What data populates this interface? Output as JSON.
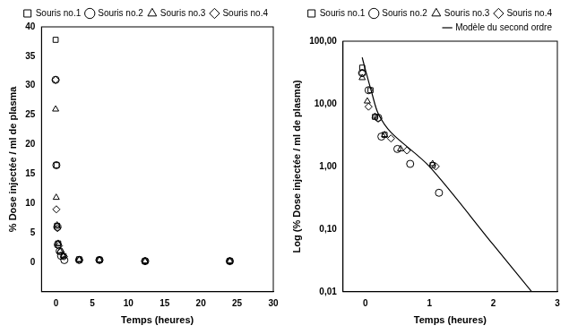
{
  "chart_data": [
    {
      "type": "scatter",
      "x_label": "Temps (heures)",
      "y_label": "% Dose injectée / ml de plasma",
      "xlim": [
        -2,
        30
      ],
      "xticks": [
        0,
        5,
        10,
        15,
        20,
        25,
        30
      ],
      "ylim": [
        -5,
        40
      ],
      "yticks": [
        0,
        5,
        10,
        15,
        20,
        25,
        30,
        35,
        40
      ],
      "grid": false,
      "legend": "upper right",
      "series": [
        {
          "name": "Souris no.1",
          "marker": "square",
          "color": "#000000",
          "x": [
            -0.05,
            0.08,
            0.15,
            0.3,
            1.05,
            3.2,
            6,
            12.3,
            24
          ],
          "values": [
            37.8,
            16.5,
            6.2,
            3.2,
            1.05,
            0.5,
            0.4,
            0.2,
            0.2
          ]
        },
        {
          "name": "Souris no.2",
          "marker": "circle",
          "color": "#000000",
          "x": [
            -0.05,
            0.05,
            0.2,
            0.25,
            0.5,
            0.7,
            1.15,
            3.2,
            6,
            12.3,
            24
          ],
          "values": [
            31,
            16.5,
            6,
            3,
            1.9,
            1.1,
            0.38,
            0.4,
            0.4,
            0.2,
            0.2
          ]
        },
        {
          "name": "Souris no.3",
          "marker": "triangle",
          "color": "#000000",
          "x": [
            -0.05,
            0.03,
            0.15,
            0.3,
            0.55,
            1.05,
            3.2,
            6,
            12.3,
            24
          ],
          "values": [
            26,
            11,
            6.3,
            3.2,
            1.9,
            1.1,
            0.45,
            0.4,
            0.2,
            0.2
          ]
        },
        {
          "name": "Souris no.4",
          "marker": "diamond",
          "color": "#000000",
          "x": [
            -0.05,
            0.05,
            0.2,
            0.4,
            0.65,
            1.1,
            3.2,
            6,
            12.3,
            24
          ],
          "values": [
            31,
            9,
            5.8,
            2.8,
            1.8,
            1.0,
            0.4,
            0.4,
            0.2,
            0.2
          ]
        }
      ]
    },
    {
      "type": "scatter",
      "x_label": "Temps (heures)",
      "y_label": "Log (% Dose injectée / ml de plasma)",
      "log": "y",
      "xlim": [
        -0.35,
        3
      ],
      "xticks": [
        0,
        1,
        2,
        3
      ],
      "ylim": [
        0.01,
        100
      ],
      "yticks": [
        {
          "value": 0.01,
          "label": "0,01"
        },
        {
          "value": 0.1,
          "label": "0,10"
        },
        {
          "value": 1,
          "label": "1,00"
        },
        {
          "value": 10,
          "label": "10,00"
        },
        {
          "value": 100,
          "label": "100,00"
        }
      ],
      "grid": false,
      "legend": "upper right",
      "series": [
        {
          "name": "Souris no.1",
          "marker": "square",
          "color": "#000000",
          "x": [
            -0.05,
            0.08,
            0.15,
            0.3,
            1.05
          ],
          "values": [
            37.8,
            16.5,
            6.2,
            3.2,
            1.05
          ]
        },
        {
          "name": "Souris no.2",
          "marker": "circle",
          "color": "#000000",
          "x": [
            -0.05,
            0.05,
            0.2,
            0.25,
            0.5,
            0.7,
            1.15
          ],
          "values": [
            31,
            16.5,
            6,
            3,
            1.9,
            1.1,
            0.38
          ]
        },
        {
          "name": "Souris no.3",
          "marker": "triangle",
          "color": "#000000",
          "x": [
            -0.05,
            0.03,
            0.15,
            0.3,
            0.55,
            1.05
          ],
          "values": [
            26,
            11,
            6.3,
            3.2,
            1.9,
            1.1
          ]
        },
        {
          "name": "Souris no.4",
          "marker": "diamond",
          "color": "#000000",
          "x": [
            -0.05,
            0.05,
            0.2,
            0.4,
            0.65,
            1.1
          ],
          "values": [
            31,
            9,
            5.8,
            2.8,
            1.8,
            1.0
          ]
        },
        {
          "name": "Modèle du second ordre",
          "type": "line",
          "line_style": "solid",
          "color": "#000000",
          "x": [
            -0.05,
            0,
            0.1,
            0.2,
            0.4,
            1,
            2,
            2.6
          ],
          "values": [
            55,
            35,
            15,
            7,
            3.5,
            1.0,
            0.056,
            0.01
          ]
        }
      ]
    }
  ]
}
